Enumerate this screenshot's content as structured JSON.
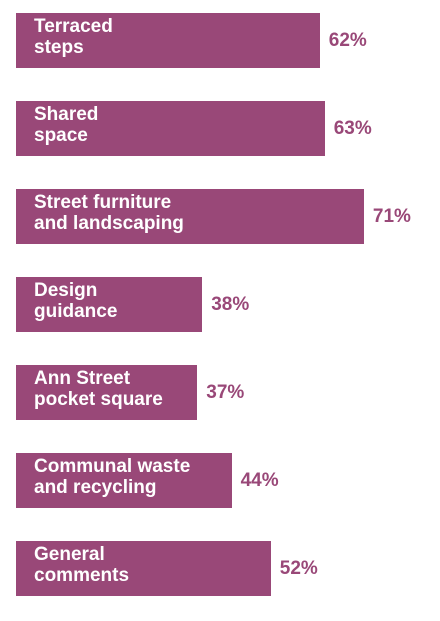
{
  "chart_data": {
    "type": "bar",
    "orientation": "horizontal",
    "categories": [
      "Terraced\nsteps",
      "Shared\nspace",
      "Street furniture\nand landscaping",
      "Design\nguidance",
      "Ann Street\npocket square",
      "Communal waste\nand recycling",
      "General\ncomments"
    ],
    "values": [
      62,
      63,
      71,
      38,
      37,
      44,
      52
    ],
    "value_labels": [
      "62%",
      "63%",
      "71%",
      "38%",
      "37%",
      "44%",
      "52%"
    ],
    "unit": "%",
    "xlim": [
      0,
      100
    ],
    "grid": false,
    "legend": "none",
    "colors": {
      "bar": "#994878",
      "bar_text": "#ffffff",
      "value_text": "#994878"
    }
  }
}
